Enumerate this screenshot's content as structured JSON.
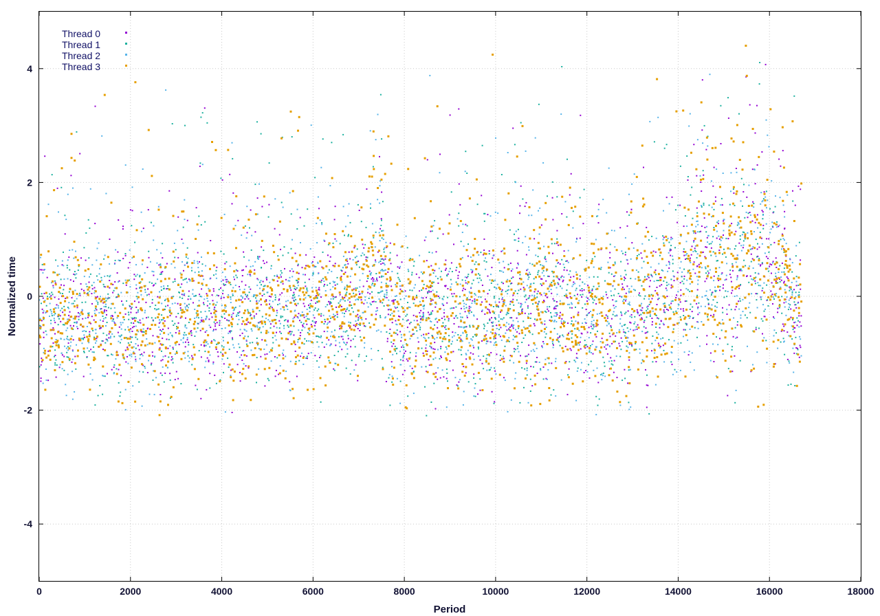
{
  "chart_data": {
    "type": "scatter",
    "title": "",
    "xlabel": "Period",
    "ylabel": "Normalized time",
    "xlim": [
      0,
      18000
    ],
    "ylim": [
      -5,
      5
    ],
    "x_ticks": [
      0,
      2000,
      4000,
      6000,
      8000,
      10000,
      12000,
      14000,
      16000,
      18000
    ],
    "y_ticks": [
      -4,
      -2,
      0,
      2,
      4
    ],
    "grid": true,
    "legend_position": "top-left",
    "series": [
      {
        "name": "Thread 0",
        "color": "#9400d3",
        "marker": "dot"
      },
      {
        "name": "Thread 1",
        "color": "#1ab09e",
        "marker": "dot"
      },
      {
        "name": "Thread 2",
        "color": "#56b4e9",
        "marker": "dot"
      },
      {
        "name": "Thread 3",
        "color": "#e69f00",
        "marker": "square"
      }
    ],
    "points_per_series_approx": 16700,
    "envelope": [
      {
        "x": 0,
        "low": -1.5,
        "center": -0.4,
        "high": 0.9
      },
      {
        "x": 1000,
        "low": -1.7,
        "center": -0.3,
        "high": 1.2
      },
      {
        "x": 2000,
        "low": -1.8,
        "center": -0.4,
        "high": 1.1
      },
      {
        "x": 3000,
        "low": -1.7,
        "center": -0.3,
        "high": 1.4
      },
      {
        "x": 4000,
        "low": -1.7,
        "center": -0.3,
        "high": 1.1
      },
      {
        "x": 5000,
        "low": -1.6,
        "center": -0.2,
        "high": 1.2
      },
      {
        "x": 6000,
        "low": -1.6,
        "center": -0.2,
        "high": 1.2
      },
      {
        "x": 7000,
        "low": -1.4,
        "center": -0.1,
        "high": 1.4
      },
      {
        "x": 7500,
        "low": -0.9,
        "center": 0.6,
        "high": 2.4
      },
      {
        "x": 7700,
        "low": -1.8,
        "center": -0.4,
        "high": 1.0
      },
      {
        "x": 9000,
        "low": -1.8,
        "center": -0.3,
        "high": 1.2
      },
      {
        "x": 10000,
        "low": -1.8,
        "center": -0.3,
        "high": 1.3
      },
      {
        "x": 11000,
        "low": -1.6,
        "center": -0.1,
        "high": 1.5
      },
      {
        "x": 12000,
        "low": -1.7,
        "center": -0.3,
        "high": 1.3
      },
      {
        "x": 13000,
        "low": -1.7,
        "center": -0.2,
        "high": 1.5
      },
      {
        "x": 14000,
        "low": -1.5,
        "center": 0.0,
        "high": 1.6
      },
      {
        "x": 14500,
        "low": -1.2,
        "center": 0.6,
        "high": 2.6
      },
      {
        "x": 15000,
        "low": -1.3,
        "center": 0.4,
        "high": 2.6
      },
      {
        "x": 15800,
        "low": -1.3,
        "center": 0.8,
        "high": 3.0
      },
      {
        "x": 16300,
        "low": -1.2,
        "center": 0.3,
        "high": 2.0
      },
      {
        "x": 16700,
        "low": -1.5,
        "center": -0.3,
        "high": 1.2
      }
    ]
  }
}
